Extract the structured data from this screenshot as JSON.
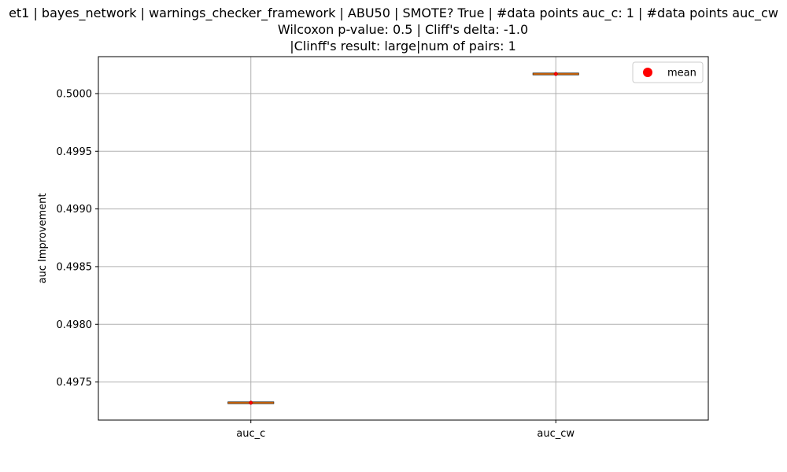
{
  "chart_data": {
    "type": "box",
    "title_lines": [
      "et1 | bayes_network | warnings_checker_framework | ABU50 | SMOTE? True | #data points auc_c: 1 | #data points auc_cw",
      "Wilcoxon p-value: 0.5 | Cliff's delta: -1.0",
      "|Clinff's result: large|num of pairs: 1"
    ],
    "xlabel": "",
    "ylabel": "auc Improvement",
    "categories": [
      "auc_c",
      "auc_cw"
    ],
    "values": [
      0.49732,
      0.50017
    ],
    "means": [
      0.49732,
      0.50017
    ],
    "ylim": [
      0.49717,
      0.50032
    ],
    "yticks": [
      0.4975,
      0.498,
      0.4985,
      0.499,
      0.4995,
      0.5
    ],
    "ytick_labels": [
      "0.4975",
      "0.4980",
      "0.4985",
      "0.4990",
      "0.4995",
      "0.5000"
    ],
    "grid": true,
    "legend": {
      "placement": "top-right",
      "entries": [
        {
          "label": "mean",
          "marker": "circle",
          "color": "#ff0000"
        }
      ]
    },
    "colors": {
      "median": "#ff7f0e",
      "box": "#000000",
      "mean": "#ff0000",
      "grid": "#b0b0b0"
    }
  }
}
